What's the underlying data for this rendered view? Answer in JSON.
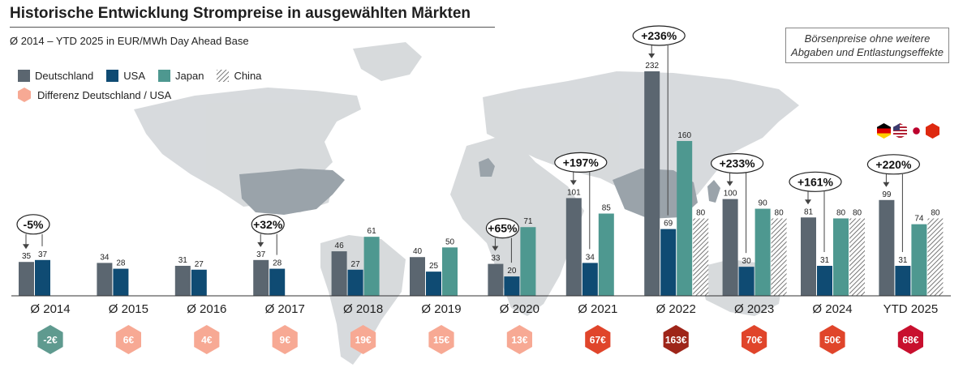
{
  "page": {
    "title": "Historische Entwicklung Strompreise in ausgewählten Märkten",
    "subtitle": "Ø 2014 – YTD 2025 in EUR/MWh Day Ahead Base",
    "note": "Börsenpreise ohne weitere Abgaben und Entlastungseffekte",
    "legend": {
      "deutschland": "Deutschland",
      "usa": "USA",
      "japan": "Japan",
      "china": "China",
      "differenz": "Differenz Deutschland / USA"
    },
    "flags": [
      "germany-flag-icon",
      "usa-flag-icon",
      "japan-flag-icon",
      "china-flag-icon"
    ]
  },
  "colors": {
    "deutschland": "#5b6670",
    "usa": "#0f4b73",
    "japan": "#4e9890",
    "china_hatch": "#555555",
    "diff_negative": "#5f9a8f",
    "diff_low": "#f7a994",
    "diff_high": "#e0452b",
    "diff_max": "#9e2519",
    "diff_2025": "#c8102e",
    "map": "#a7adb2"
  },
  "chart_data": {
    "type": "bar",
    "categories": [
      "Ø 2014",
      "Ø 2015",
      "Ø 2016",
      "Ø 2017",
      "Ø 2018",
      "Ø 2019",
      "Ø 2020",
      "Ø 2021",
      "Ø 2022",
      "Ø 2023",
      "Ø 2024",
      "YTD 2025"
    ],
    "series": [
      {
        "name": "Deutschland",
        "values": [
          35,
          34,
          31,
          37,
          46,
          40,
          33,
          101,
          232,
          100,
          81,
          99
        ]
      },
      {
        "name": "USA",
        "values": [
          37,
          28,
          27,
          28,
          27,
          25,
          20,
          34,
          69,
          30,
          31,
          31
        ]
      },
      {
        "name": "Japan",
        "values": [
          null,
          null,
          null,
          null,
          61,
          50,
          71,
          85,
          160,
          90,
          80,
          74
        ]
      },
      {
        "name": "China",
        "values": [
          null,
          null,
          null,
          null,
          null,
          null,
          null,
          null,
          80,
          80,
          80,
          80
        ]
      }
    ],
    "differenz": [
      "-2€",
      "6€",
      "4€",
      "9€",
      "19€",
      "15€",
      "13€",
      "67€",
      "163€",
      "70€",
      "50€",
      "68€"
    ],
    "percent_labels": [
      "-5%",
      null,
      null,
      "+32%",
      null,
      null,
      "+65%",
      "+197%",
      "+236%",
      "+233%",
      "+161%",
      "+220%"
    ],
    "ylim": [
      0,
      232
    ],
    "xlabel": "",
    "ylabel": "",
    "legend_position": "top-left",
    "grid": false
  }
}
